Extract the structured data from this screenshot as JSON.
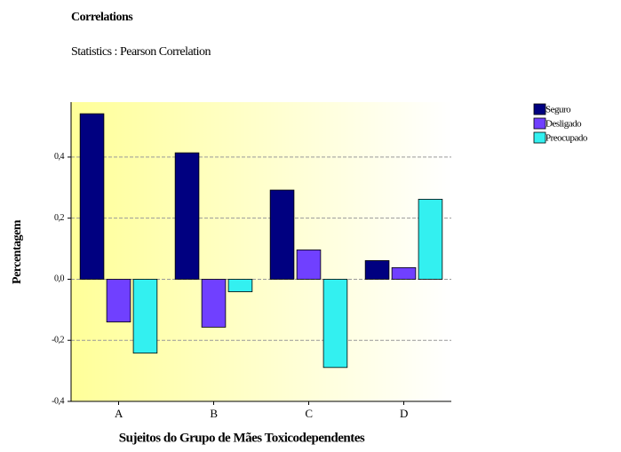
{
  "chart_data": {
    "type": "bar",
    "title": "Correlations",
    "subtitle": "Statistics : Pearson Correlation",
    "x_label": "Sujeitos do Grupo de Mães Toxicodependentes",
    "y_label": "Percentagem",
    "categories": [
      "A",
      "B",
      "C",
      "D"
    ],
    "series": [
      {
        "name": "Seguro",
        "color": "#000080",
        "values": [
          0.542,
          0.414,
          0.292,
          0.061
        ]
      },
      {
        "name": "Desligado",
        "color": "#7040ff",
        "values": [
          -0.14,
          -0.157,
          0.096,
          0.038
        ]
      },
      {
        "name": "Preocupado",
        "color": "#33f0f0",
        "values": [
          -0.242,
          -0.041,
          -0.289,
          0.262
        ]
      }
    ],
    "ylim": [
      -0.4,
      0.58
    ],
    "yticks": [
      {
        "value": -0.4,
        "label": "-0,4"
      },
      {
        "value": -0.2,
        "label": "-0,2"
      },
      {
        "value": 0,
        "label": "0,0"
      },
      {
        "value": 0.2,
        "label": "0,2"
      },
      {
        "value": 0.4,
        "label": "0,4"
      }
    ],
    "grid": true,
    "legend": "right"
  }
}
